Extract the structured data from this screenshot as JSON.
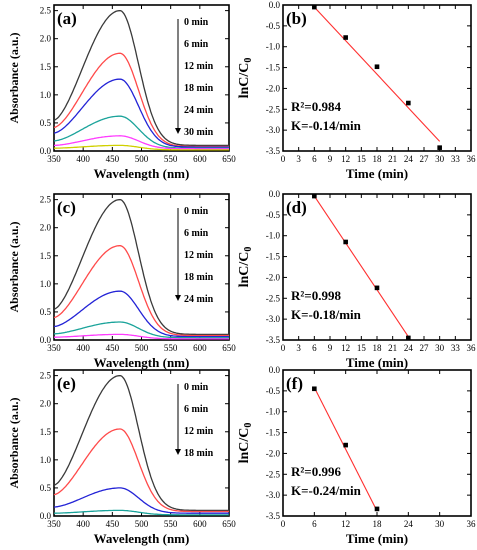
{
  "colors": {
    "axis": "#000000",
    "fit_line": "#ff3030",
    "point": "#000000"
  },
  "chart_data": [
    {
      "panel": "(a)",
      "type": "line",
      "xlabel": "Wavelength (nm)",
      "ylabel": "Absorbance (a.u.)",
      "xlim": [
        350,
        650
      ],
      "ylim": [
        0,
        2.6
      ],
      "xticks": [
        350,
        400,
        450,
        500,
        550,
        600,
        650
      ],
      "yticks": [
        0.0,
        0.5,
        1.0,
        1.5,
        2.0,
        2.5
      ],
      "peak_x": 463,
      "legend": [
        "0 min",
        "6 min",
        "12 min",
        "18 min",
        "24 min",
        "30 min"
      ],
      "series": [
        {
          "name": "0 min",
          "color": "#3a3a3a",
          "peak": 2.5,
          "start": 0.55,
          "tail": 0.1
        },
        {
          "name": "6 min",
          "color": "#ff4a4a",
          "peak": 1.74,
          "start": 0.42,
          "tail": 0.08
        },
        {
          "name": "12 min",
          "color": "#2323d6",
          "peak": 1.28,
          "start": 0.32,
          "tail": 0.07
        },
        {
          "name": "18 min",
          "color": "#1aa39a",
          "peak": 0.62,
          "start": 0.18,
          "tail": 0.05
        },
        {
          "name": "24 min",
          "color": "#ff3cff",
          "peak": 0.27,
          "start": 0.1,
          "tail": 0.04
        },
        {
          "name": "30 min",
          "color": "#d0d000",
          "peak": 0.1,
          "start": 0.05,
          "tail": 0.02
        }
      ]
    },
    {
      "panel": "(b)",
      "type": "scatter",
      "xlabel": "Time (min)",
      "ylabel": "lnC/C0",
      "xlim": [
        0,
        36
      ],
      "ylim": [
        -3.5,
        0
      ],
      "xticks": [
        0,
        3,
        6,
        9,
        12,
        15,
        18,
        21,
        24,
        27,
        30,
        33,
        36
      ],
      "yticks": [
        0.0,
        -0.5,
        -1.0,
        -1.5,
        -2.0,
        -2.5,
        -3.0,
        -3.5
      ],
      "points": {
        "x": [
          6,
          12,
          18,
          24,
          30
        ],
        "y": [
          -0.05,
          -0.78,
          -1.48,
          -2.35,
          -3.42
        ]
      },
      "fit": {
        "x": [
          6,
          30
        ],
        "y": [
          -0.05,
          -3.27
        ]
      },
      "r2": "R²=0.984",
      "k": "K=-0.14/min"
    },
    {
      "panel": "(c)",
      "type": "line",
      "xlabel": "Wavelength (nm)",
      "ylabel": "Absorbance (a.u.)",
      "xlim": [
        350,
        650
      ],
      "ylim": [
        0,
        2.6
      ],
      "xticks": [
        350,
        400,
        450,
        500,
        550,
        600,
        650
      ],
      "yticks": [
        0.0,
        0.5,
        1.0,
        1.5,
        2.0,
        2.5
      ],
      "peak_x": 463,
      "legend": [
        "0 min",
        "6 min",
        "12 min",
        "18 min",
        "24 min"
      ],
      "series": [
        {
          "name": "0 min",
          "color": "#3a3a3a",
          "peak": 2.5,
          "start": 0.55,
          "tail": 0.1
        },
        {
          "name": "6 min",
          "color": "#ff4a4a",
          "peak": 1.68,
          "start": 0.4,
          "tail": 0.08
        },
        {
          "name": "12 min",
          "color": "#2323d6",
          "peak": 0.87,
          "start": 0.24,
          "tail": 0.06
        },
        {
          "name": "18 min",
          "color": "#1aa39a",
          "peak": 0.32,
          "start": 0.11,
          "tail": 0.04
        },
        {
          "name": "24 min",
          "color": "#ff3cff",
          "peak": 0.1,
          "start": 0.05,
          "tail": 0.02
        }
      ]
    },
    {
      "panel": "(d)",
      "type": "scatter",
      "xlabel": "Time (min)",
      "ylabel": "lnC/C0",
      "xlim": [
        0,
        36
      ],
      "ylim": [
        -3.5,
        0
      ],
      "xticks": [
        0,
        3,
        6,
        9,
        12,
        15,
        18,
        21,
        24,
        27,
        30,
        33,
        36
      ],
      "yticks": [
        0.0,
        -0.5,
        -1.0,
        -1.5,
        -2.0,
        -2.5,
        -3.0,
        -3.5
      ],
      "points": {
        "x": [
          6,
          12,
          18,
          24
        ],
        "y": [
          -0.05,
          -1.15,
          -2.25,
          -3.45
        ]
      },
      "fit": {
        "x": [
          6,
          24
        ],
        "y": [
          -0.05,
          -3.42
        ]
      },
      "r2": "R²=0.998",
      "k": "K=-0.18/min"
    },
    {
      "panel": "(e)",
      "type": "line",
      "xlabel": "Wavelength (nm)",
      "ylabel": "Absorbance (a.u.)",
      "xlim": [
        350,
        650
      ],
      "ylim": [
        0,
        2.6
      ],
      "xticks": [
        350,
        400,
        450,
        500,
        550,
        600,
        650
      ],
      "yticks": [
        0.0,
        0.5,
        1.0,
        1.5,
        2.0,
        2.5
      ],
      "peak_x": 463,
      "legend": [
        "0 min",
        "6 min",
        "12 min",
        "18 min"
      ],
      "series": [
        {
          "name": "0 min",
          "color": "#3a3a3a",
          "peak": 2.5,
          "start": 0.55,
          "tail": 0.1
        },
        {
          "name": "6 min",
          "color": "#ff4a4a",
          "peak": 1.55,
          "start": 0.38,
          "tail": 0.08
        },
        {
          "name": "12 min",
          "color": "#2323d6",
          "peak": 0.5,
          "start": 0.16,
          "tail": 0.05
        },
        {
          "name": "18 min",
          "color": "#1aa39a",
          "peak": 0.1,
          "start": 0.05,
          "tail": 0.02
        }
      ]
    },
    {
      "panel": "(f)",
      "type": "scatter",
      "xlabel": "Time (min)",
      "ylabel": "lnC/C0",
      "xlim": [
        0,
        36
      ],
      "ylim": [
        -3.5,
        0
      ],
      "xticks": [
        0,
        6,
        12,
        18,
        24,
        30,
        36
      ],
      "yticks": [
        0.0,
        -0.5,
        -1.0,
        -1.5,
        -2.0,
        -2.5,
        -3.0,
        -3.5
      ],
      "points": {
        "x": [
          6,
          12,
          18
        ],
        "y": [
          -0.45,
          -1.8,
          -3.33
        ]
      },
      "fit": {
        "x": [
          6,
          18
        ],
        "y": [
          -0.42,
          -3.38
        ]
      },
      "r2": "R²=0.996",
      "k": "K=-0.24/min"
    }
  ]
}
